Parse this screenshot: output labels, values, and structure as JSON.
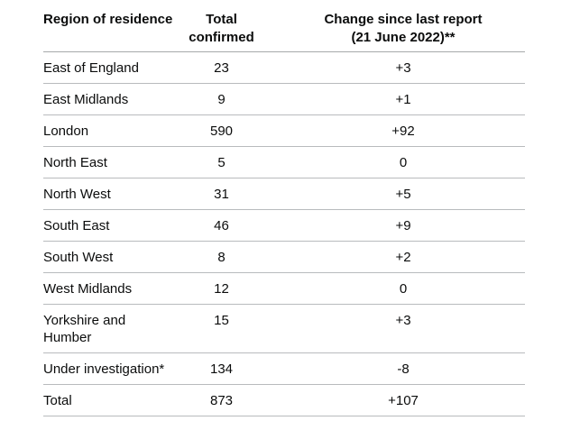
{
  "table": {
    "headers": {
      "region": "Region of residence",
      "total": "Total\nconfirmed",
      "change": "Change since last report\n(21 June 2022)**"
    },
    "rows": [
      {
        "region": "East of England",
        "total": "23",
        "change": "+3"
      },
      {
        "region": "East Midlands",
        "total": "9",
        "change": "+1"
      },
      {
        "region": "London",
        "total": "590",
        "change": "+92"
      },
      {
        "region": "North East",
        "total": "5",
        "change": "0"
      },
      {
        "region": "North West",
        "total": "31",
        "change": "+5"
      },
      {
        "region": "South East",
        "total": "46",
        "change": "+9"
      },
      {
        "region": "South West",
        "total": "8",
        "change": "+2"
      },
      {
        "region": "West Midlands",
        "total": "12",
        "change": "0"
      },
      {
        "region": "Yorkshire and Humber",
        "total": "15",
        "change": "+3"
      },
      {
        "region": "Under investigation*",
        "total": "134",
        "change": "-8"
      },
      {
        "region": "Total",
        "total": "873",
        "change": "+107"
      }
    ],
    "colors": {
      "text": "#0b0c0c",
      "header_border": "#a6a9aa",
      "row_border": "#b8bbbd",
      "background": "#ffffff"
    }
  }
}
